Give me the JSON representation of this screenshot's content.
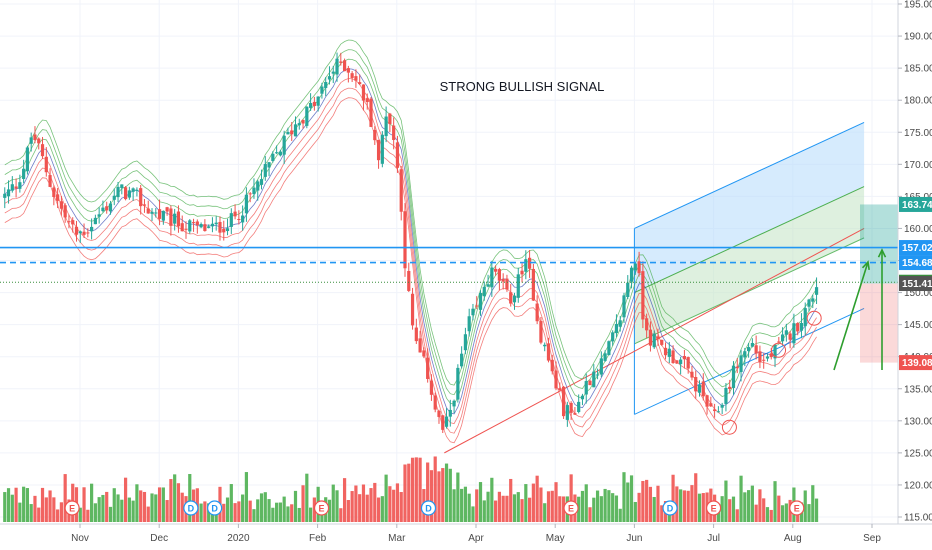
{
  "chart_data": {
    "type": "candlestick",
    "title": "STRONG BULLISH SIGNAL",
    "ylim": [
      114.5,
      195
    ],
    "y_ticks": [
      115,
      120,
      125,
      130,
      135,
      140,
      145,
      150,
      155,
      160,
      165,
      170,
      175,
      180,
      185,
      190,
      195
    ],
    "y_tick_labels": [
      "115.00",
      "120.00",
      "125.00",
      "130.00",
      "135.00",
      "140.00",
      "145.00",
      "150.00",
      "155.00",
      "160.00",
      "165.00",
      "170.00",
      "175.00",
      "180.00",
      "185.00",
      "190.00",
      "195.00"
    ],
    "x_ticks": [
      "Nov",
      "Dec",
      "2020",
      "Feb",
      "Mar",
      "Apr",
      "May",
      "Jun",
      "Jul",
      "Aug",
      "Sep"
    ],
    "x_tick_pos": [
      0.0,
      1.0,
      2.0,
      3.0,
      4.0,
      5.0,
      6.0,
      7.0,
      8.0,
      9.0,
      10.0
    ],
    "price_path": [
      [
        -0.95,
        165
      ],
      [
        -0.8,
        167
      ],
      [
        -0.7,
        170
      ],
      [
        -0.6,
        175
      ],
      [
        -0.45,
        170
      ],
      [
        -0.35,
        166
      ],
      [
        -0.2,
        162
      ],
      [
        -0.05,
        159
      ],
      [
        0.1,
        160
      ],
      [
        0.3,
        163
      ],
      [
        0.5,
        166
      ],
      [
        0.7,
        165
      ],
      [
        0.85,
        163
      ],
      [
        1.0,
        162
      ],
      [
        1.2,
        161
      ],
      [
        1.45,
        160
      ],
      [
        1.7,
        160
      ],
      [
        1.9,
        161
      ],
      [
        2.1,
        164
      ],
      [
        2.3,
        168
      ],
      [
        2.5,
        172
      ],
      [
        2.7,
        176
      ],
      [
        2.85,
        178
      ],
      [
        3.0,
        180
      ],
      [
        3.15,
        184
      ],
      [
        3.3,
        186
      ],
      [
        3.45,
        184
      ],
      [
        3.6,
        180
      ],
      [
        3.7,
        176
      ],
      [
        3.78,
        169
      ],
      [
        3.85,
        179
      ],
      [
        3.95,
        175
      ],
      [
        4.05,
        165
      ],
      [
        4.1,
        155
      ],
      [
        4.2,
        144
      ],
      [
        4.3,
        140
      ],
      [
        4.4,
        137
      ],
      [
        4.5,
        131
      ],
      [
        4.6,
        128
      ],
      [
        4.7,
        133
      ],
      [
        4.8,
        139
      ],
      [
        4.9,
        145
      ],
      [
        5.0,
        147
      ],
      [
        5.1,
        151
      ],
      [
        5.2,
        153
      ],
      [
        5.3,
        152
      ],
      [
        5.4,
        149
      ],
      [
        5.5,
        150
      ],
      [
        5.6,
        155
      ],
      [
        5.7,
        152
      ],
      [
        5.8,
        144
      ],
      [
        5.9,
        140
      ],
      [
        6.0,
        136
      ],
      [
        6.1,
        132
      ],
      [
        6.2,
        131
      ],
      [
        6.3,
        133
      ],
      [
        6.4,
        136
      ],
      [
        6.5,
        138
      ],
      [
        6.6,
        139
      ],
      [
        6.7,
        142
      ],
      [
        6.8,
        145
      ],
      [
        6.9,
        151
      ],
      [
        7.0,
        156
      ],
      [
        7.05,
        153
      ],
      [
        7.1,
        147
      ],
      [
        7.2,
        143
      ],
      [
        7.3,
        142
      ],
      [
        7.4,
        141
      ],
      [
        7.5,
        140
      ],
      [
        7.6,
        139
      ],
      [
        7.7,
        137
      ],
      [
        7.8,
        135
      ],
      [
        7.9,
        133
      ],
      [
        8.0,
        130
      ],
      [
        8.1,
        133
      ],
      [
        8.2,
        136
      ],
      [
        8.3,
        139
      ],
      [
        8.4,
        141
      ],
      [
        8.5,
        142
      ],
      [
        8.6,
        139
      ],
      [
        8.7,
        140
      ],
      [
        8.8,
        141
      ],
      [
        8.9,
        143
      ],
      [
        9.0,
        144
      ],
      [
        9.1,
        146
      ],
      [
        9.2,
        148
      ],
      [
        9.3,
        151.4
      ]
    ],
    "last_price": 151.41,
    "levels": {
      "resistance": 157.02,
      "dashed": 154.68,
      "dotted": 151.61
    },
    "price_tags": [
      {
        "value": 163.74,
        "label": "163.74",
        "color": "#26a69a"
      },
      {
        "value": 157.02,
        "label": "157.02",
        "color": "#2196f3"
      },
      {
        "value": 154.68,
        "label": "154.68",
        "color": "#2196f3"
      },
      {
        "value": 151.61,
        "label": "151.61",
        "color": "#388e3c"
      },
      {
        "value": 151.41,
        "label": "151.41",
        "color": "#555555"
      },
      {
        "value": 139.08,
        "label": "139.08",
        "color": "#ef5350"
      }
    ],
    "earnings_markers": [
      {
        "x": -0.1,
        "label": "E"
      },
      {
        "x": 1.4,
        "label": "D"
      },
      {
        "x": 1.7,
        "label": "D"
      },
      {
        "x": 3.05,
        "label": "E"
      },
      {
        "x": 4.4,
        "label": "D"
      },
      {
        "x": 6.2,
        "label": "E"
      },
      {
        "x": 7.45,
        "label": "D"
      },
      {
        "x": 8.0,
        "label": "E"
      },
      {
        "x": 9.05,
        "label": "E"
      }
    ],
    "colors": {
      "up": "#26a69a",
      "down": "#ef5350",
      "volume_up": "#4caf50",
      "volume_down": "#ef5350",
      "channel": "#2196f3",
      "trendline": "#ef5350"
    }
  }
}
